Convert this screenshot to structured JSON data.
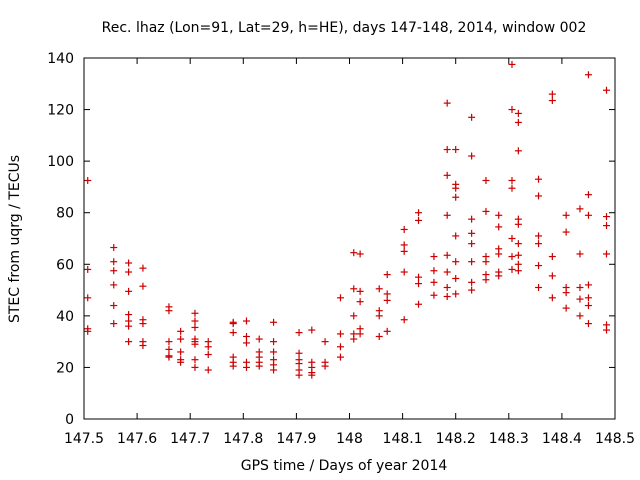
{
  "chart_data": {
    "type": "scatter",
    "title": "Rec. lhaz (Lon=91, Lat=29, h=HE), days 147-148, 2014, window 002",
    "xlabel": "GPS time / Days of year 2014",
    "ylabel": "STEC from uqrg / TECUs",
    "xlim": [
      147.5,
      148.5
    ],
    "ylim": [
      0,
      140
    ],
    "xticks": [
      147.5,
      147.6,
      147.7,
      147.8,
      147.9,
      148,
      148.1,
      148.2,
      148.3,
      148.4,
      148.5
    ],
    "xtick_labels": [
      "147.5",
      "147.6",
      "147.7",
      "147.8",
      "147.9",
      "148",
      "148.1",
      "148.2",
      "148.3",
      "148.4",
      "148.5"
    ],
    "yticks": [
      0,
      20,
      40,
      60,
      80,
      100,
      120,
      140
    ],
    "ytick_labels": [
      "0",
      "20",
      "40",
      "60",
      "80",
      "100",
      "120",
      "140"
    ],
    "marker": "plus",
    "color": "#cc0000",
    "points": [
      [
        147.507,
        92.5
      ],
      [
        147.507,
        58
      ],
      [
        147.507,
        47
      ],
      [
        147.507,
        35
      ],
      [
        147.507,
        34
      ],
      [
        147.556,
        66.5
      ],
      [
        147.556,
        61
      ],
      [
        147.556,
        57.5
      ],
      [
        147.556,
        52
      ],
      [
        147.556,
        44
      ],
      [
        147.556,
        37
      ],
      [
        147.584,
        60.5
      ],
      [
        147.584,
        57
      ],
      [
        147.584,
        49.5
      ],
      [
        147.584,
        40.5
      ],
      [
        147.584,
        38
      ],
      [
        147.584,
        36
      ],
      [
        147.584,
        30
      ],
      [
        147.611,
        58.5
      ],
      [
        147.611,
        51.5
      ],
      [
        147.611,
        38.5
      ],
      [
        147.611,
        37
      ],
      [
        147.611,
        30
      ],
      [
        147.611,
        28.5
      ],
      [
        147.66,
        43.5
      ],
      [
        147.66,
        42
      ],
      [
        147.66,
        30
      ],
      [
        147.66,
        27
      ],
      [
        147.66,
        24.5
      ],
      [
        147.66,
        24
      ],
      [
        147.682,
        34
      ],
      [
        147.682,
        31
      ],
      [
        147.682,
        26
      ],
      [
        147.682,
        23
      ],
      [
        147.682,
        22
      ],
      [
        147.709,
        41
      ],
      [
        147.709,
        38
      ],
      [
        147.709,
        35.5
      ],
      [
        147.709,
        31
      ],
      [
        147.709,
        30
      ],
      [
        147.709,
        29
      ],
      [
        147.709,
        23
      ],
      [
        147.709,
        20
      ],
      [
        147.734,
        30
      ],
      [
        147.734,
        28
      ],
      [
        147.734,
        25
      ],
      [
        147.734,
        19
      ],
      [
        147.781,
        37.5
      ],
      [
        147.781,
        37
      ],
      [
        147.781,
        33.5
      ],
      [
        147.781,
        24
      ],
      [
        147.781,
        22
      ],
      [
        147.781,
        20.5
      ],
      [
        147.806,
        38
      ],
      [
        147.806,
        32
      ],
      [
        147.806,
        29.5
      ],
      [
        147.806,
        22
      ],
      [
        147.806,
        20
      ],
      [
        147.83,
        31
      ],
      [
        147.83,
        26
      ],
      [
        147.83,
        24
      ],
      [
        147.83,
        22
      ],
      [
        147.83,
        20.5
      ],
      [
        147.857,
        37.5
      ],
      [
        147.857,
        30
      ],
      [
        147.857,
        26
      ],
      [
        147.857,
        23
      ],
      [
        147.857,
        21
      ],
      [
        147.857,
        19
      ],
      [
        147.905,
        33.5
      ],
      [
        147.905,
        25.5
      ],
      [
        147.905,
        23
      ],
      [
        147.905,
        21.5
      ],
      [
        147.905,
        19
      ],
      [
        147.905,
        17
      ],
      [
        147.929,
        34.5
      ],
      [
        147.929,
        22
      ],
      [
        147.929,
        20
      ],
      [
        147.929,
        18
      ],
      [
        147.929,
        17
      ],
      [
        147.954,
        30
      ],
      [
        147.954,
        22
      ],
      [
        147.954,
        20.5
      ],
      [
        147.983,
        47
      ],
      [
        147.983,
        33
      ],
      [
        147.983,
        28
      ],
      [
        147.983,
        24
      ],
      [
        148.008,
        64.5
      ],
      [
        148.008,
        50.5
      ],
      [
        148.008,
        40
      ],
      [
        148.008,
        33
      ],
      [
        148.008,
        31
      ],
      [
        148.02,
        64
      ],
      [
        148.02,
        49.5
      ],
      [
        148.02,
        45.5
      ],
      [
        148.02,
        35
      ],
      [
        148.02,
        33
      ],
      [
        148.056,
        50.5
      ],
      [
        148.056,
        42
      ],
      [
        148.056,
        40
      ],
      [
        148.056,
        32
      ],
      [
        148.071,
        56
      ],
      [
        148.071,
        48.5
      ],
      [
        148.071,
        46
      ],
      [
        148.071,
        34
      ],
      [
        148.103,
        73.5
      ],
      [
        148.103,
        67.5
      ],
      [
        148.103,
        65
      ],
      [
        148.103,
        57
      ],
      [
        148.103,
        38.5
      ],
      [
        148.13,
        80
      ],
      [
        148.13,
        77
      ],
      [
        148.13,
        55
      ],
      [
        148.13,
        52.5
      ],
      [
        148.13,
        44.5
      ],
      [
        148.159,
        63
      ],
      [
        148.159,
        57.5
      ],
      [
        148.159,
        53
      ],
      [
        148.159,
        48
      ],
      [
        148.184,
        122.5
      ],
      [
        148.184,
        104.5
      ],
      [
        148.184,
        94.5
      ],
      [
        148.184,
        79
      ],
      [
        148.184,
        63.5
      ],
      [
        148.184,
        57
      ],
      [
        148.184,
        51
      ],
      [
        148.184,
        47.5
      ],
      [
        148.2,
        104.5
      ],
      [
        148.2,
        91
      ],
      [
        148.2,
        89.5
      ],
      [
        148.2,
        86
      ],
      [
        148.2,
        71
      ],
      [
        148.2,
        61
      ],
      [
        148.2,
        54.5
      ],
      [
        148.2,
        48.5
      ],
      [
        148.23,
        117
      ],
      [
        148.23,
        102
      ],
      [
        148.23,
        77.5
      ],
      [
        148.23,
        72
      ],
      [
        148.23,
        68
      ],
      [
        148.23,
        61
      ],
      [
        148.23,
        53
      ],
      [
        148.23,
        50
      ],
      [
        148.257,
        92.5
      ],
      [
        148.257,
        80.5
      ],
      [
        148.257,
        63
      ],
      [
        148.257,
        61
      ],
      [
        148.257,
        56
      ],
      [
        148.257,
        54
      ],
      [
        148.281,
        79
      ],
      [
        148.281,
        74.5
      ],
      [
        148.281,
        66
      ],
      [
        148.281,
        64
      ],
      [
        148.281,
        57
      ],
      [
        148.281,
        55.5
      ],
      [
        148.306,
        137.5
      ],
      [
        148.306,
        120
      ],
      [
        148.306,
        92.5
      ],
      [
        148.306,
        89.5
      ],
      [
        148.306,
        70
      ],
      [
        148.306,
        63
      ],
      [
        148.306,
        58
      ],
      [
        148.318,
        118.5
      ],
      [
        148.318,
        115
      ],
      [
        148.318,
        104
      ],
      [
        148.318,
        77.5
      ],
      [
        148.318,
        75.5
      ],
      [
        148.318,
        68
      ],
      [
        148.318,
        63.5
      ],
      [
        148.318,
        60
      ],
      [
        148.318,
        57.5
      ],
      [
        148.356,
        93
      ],
      [
        148.356,
        86.5
      ],
      [
        148.356,
        71
      ],
      [
        148.356,
        68
      ],
      [
        148.356,
        59.5
      ],
      [
        148.356,
        51
      ],
      [
        148.382,
        126
      ],
      [
        148.382,
        123.5
      ],
      [
        148.382,
        63
      ],
      [
        148.382,
        55.5
      ],
      [
        148.382,
        47
      ],
      [
        148.408,
        79
      ],
      [
        148.408,
        72.5
      ],
      [
        148.408,
        51
      ],
      [
        148.408,
        49
      ],
      [
        148.408,
        43
      ],
      [
        148.434,
        81.5
      ],
      [
        148.434,
        64
      ],
      [
        148.434,
        51
      ],
      [
        148.434,
        46.5
      ],
      [
        148.434,
        40
      ],
      [
        148.45,
        133.5
      ],
      [
        148.45,
        87
      ],
      [
        148.45,
        79
      ],
      [
        148.45,
        52
      ],
      [
        148.45,
        47
      ],
      [
        148.45,
        44
      ],
      [
        148.45,
        37
      ],
      [
        148.484,
        127.5
      ],
      [
        148.484,
        78.5
      ],
      [
        148.484,
        75
      ],
      [
        148.484,
        64
      ],
      [
        148.484,
        36.5
      ],
      [
        148.484,
        34.5
      ]
    ]
  }
}
